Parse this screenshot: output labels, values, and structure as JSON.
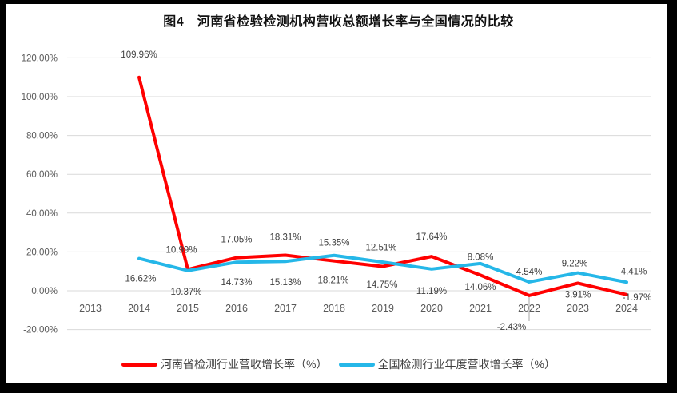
{
  "frame": {
    "border_color": "#000000",
    "paper_color": "#FFFFFF"
  },
  "chart_data": {
    "type": "line",
    "title": "图4　河南省检验检测机构营收总额增长率与全国情况的比较",
    "categories": [
      "2013",
      "2014",
      "2015",
      "2016",
      "2017",
      "2018",
      "2019",
      "2020",
      "2021",
      "2022",
      "2023",
      "2024"
    ],
    "series": [
      {
        "name": "河南省检测行业营收增长率（%）",
        "color": "#FF0000",
        "start_category_index": 1,
        "values": [
          109.96,
          10.99,
          17.05,
          18.31,
          15.35,
          12.51,
          17.64,
          8.08,
          -2.43,
          3.91,
          -1.97
        ],
        "labels": [
          "109.96%",
          "10.99%",
          "17.05%",
          "18.31%",
          "15.35%",
          "12.51%",
          "17.64%",
          "8.08%",
          "-2.43%",
          "3.91%",
          "-1.97%"
        ]
      },
      {
        "name": "全国检测行业年度营收增长率（%）",
        "color": "#25B7E8",
        "start_category_index": 1,
        "values": [
          16.62,
          10.37,
          14.73,
          15.13,
          18.21,
          14.75,
          11.19,
          14.06,
          4.54,
          9.22,
          4.41
        ],
        "labels": [
          "16.62%",
          "10.37%",
          "14.73%",
          "15.13%",
          "18.21%",
          "14.75%",
          "11.19%",
          "14.06%",
          "4.54%",
          "9.22%",
          "4.41%"
        ]
      }
    ],
    "y_axis": {
      "min": -20,
      "max": 120,
      "step": 20,
      "tick_labels": [
        "120.00%",
        "100.00%",
        "80.00%",
        "60.00%",
        "40.00%",
        "20.00%",
        "0.00%",
        "-20.00%"
      ],
      "tick_color": "#595959"
    },
    "x_axis": {
      "tick_color": "#595959"
    },
    "grid": true,
    "gridline_color": "#D9D9D9",
    "data_label_color": "#404040",
    "leader_line_color": "#A6A6A6",
    "legend_position": "bottom"
  }
}
